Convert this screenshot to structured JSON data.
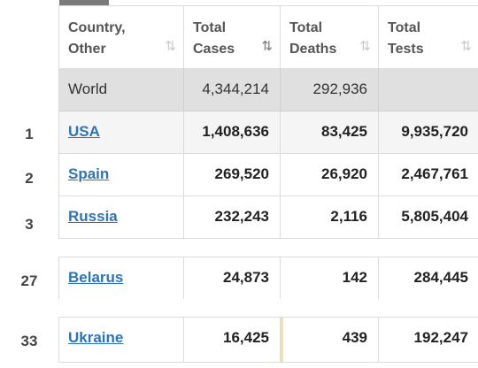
{
  "headers": [
    {
      "line1": "Country,",
      "line2": "Other"
    },
    {
      "line1": "Total",
      "line2": "Cases"
    },
    {
      "line1": "Total",
      "line2": "Deaths"
    },
    {
      "line1": "Total",
      "line2": "Tests"
    }
  ],
  "sort_icon": "⇅",
  "world": {
    "label": "World",
    "cases": "4,344,214",
    "deaths": "292,936",
    "tests": ""
  },
  "rows": [
    {
      "rank": "1",
      "country": "USA",
      "cases": "1,408,636",
      "deaths": "83,425",
      "tests": "9,935,720"
    },
    {
      "rank": "2",
      "country": "Spain",
      "cases": "269,520",
      "deaths": "26,920",
      "tests": "2,467,761"
    },
    {
      "rank": "3",
      "country": "Russia",
      "cases": "232,243",
      "deaths": "2,116",
      "tests": "5,805,404"
    },
    {
      "rank": "27",
      "country": "Belarus",
      "cases": "24,873",
      "deaths": "142",
      "tests": "284,445"
    },
    {
      "rank": "33",
      "country": "Ukraine",
      "cases": "16,425",
      "deaths": "439",
      "tests": "192,247"
    }
  ],
  "colors": {
    "link": "#2f74b5",
    "world_bg": "#e0e0e0",
    "highlight": "#f4e29a"
  }
}
